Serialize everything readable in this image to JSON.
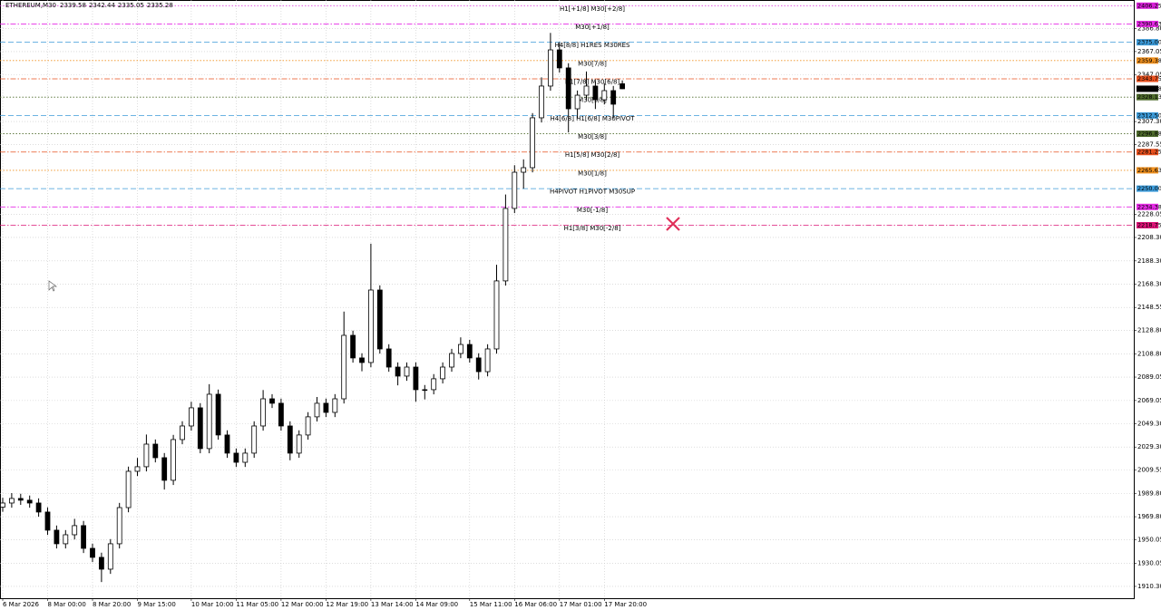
{
  "chart_data": {
    "type": "candlestick",
    "symbol": "ETHEREUM,M30",
    "categories": [
      "6 Mar 2026",
      null,
      null,
      null,
      null,
      "8 Mar 00:00",
      null,
      null,
      null,
      null,
      "8 Mar 20:00",
      null,
      null,
      null,
      null,
      "9 Mar 15:00",
      null,
      null,
      null,
      null,
      null,
      "10 Mar 10:00",
      null,
      null,
      null,
      null,
      "11 Mar 05:00",
      null,
      null,
      null,
      null,
      "12 Mar 00:00",
      null,
      null,
      null,
      null,
      "12 Mar 19:00",
      null,
      null,
      null,
      null,
      "13 Mar 14:00",
      null,
      null,
      null,
      null,
      "14 Mar 09:00",
      null,
      null,
      null,
      null,
      null,
      "15 Mar 11:00",
      null,
      null,
      null,
      null,
      "16 Mar 06:00",
      null,
      null,
      null,
      null,
      "17 Mar 01:00",
      null,
      null,
      null,
      null,
      "17 Mar 20:00",
      null,
      null
    ],
    "open": [
      1978.0,
      1981.5,
      1985.4,
      1983.9,
      1981.5,
      1973.8,
      1958.3,
      1946.7,
      1954.4,
      1962.2,
      1942.8,
      1935.1,
      1925.0,
      1946.7,
      1977.6,
      2008.6,
      2012.5,
      2031.8,
      2020.2,
      2000.9,
      2035.7,
      2047.3,
      2062.8,
      2028.0,
      2074.4,
      2039.6,
      2024.1,
      2016.3,
      2024.1,
      2047.3,
      2070.5,
      2066.7,
      2047.3,
      2024.1,
      2039.6,
      2055.1,
      2066.7,
      2058.9,
      2070.5,
      2124.7,
      2105.4,
      2101.5,
      2163.4,
      2113.1,
      2097.6,
      2089.9,
      2097.6,
      2078.3,
      2078.3,
      2087.6,
      2097.6,
      2109.2,
      2116.9,
      2105.4,
      2093.7,
      2113.1,
      2171.2,
      2233.1,
      2264.0,
      2267.9,
      2310.5,
      2337.6,
      2368.5,
      2353.1,
      2318.2,
      2329.8,
      2337.6,
      2325.9,
      2333.7,
      2339.58
    ],
    "high": [
      1986.0,
      1990.0,
      1989.4,
      1987.9,
      1985.5,
      1977.8,
      1962.3,
      1958.4,
      1968.0,
      1966.2,
      1946.8,
      1939.1,
      1950.7,
      1981.6,
      2012.6,
      2020.0,
      2040.0,
      2035.8,
      2024.2,
      2039.7,
      2051.3,
      2068.0,
      2066.8,
      2083.0,
      2078.4,
      2043.6,
      2028.1,
      2028.1,
      2051.3,
      2078.0,
      2074.5,
      2070.7,
      2051.3,
      2043.6,
      2059.1,
      2072.0,
      2070.7,
      2074.5,
      2145.0,
      2128.7,
      2109.4,
      2203.0,
      2167.4,
      2117.1,
      2101.6,
      2101.6,
      2101.6,
      2082.3,
      2091.6,
      2101.6,
      2113.2,
      2123.0,
      2120.9,
      2109.4,
      2117.1,
      2185.0,
      2245.0,
      2270.0,
      2275.0,
      2314.5,
      2345.0,
      2383.0,
      2375.0,
      2357.1,
      2333.8,
      2350.0,
      2341.6,
      2340.0,
      2337.7,
      2342.44
    ],
    "low": [
      1974.0,
      1977.5,
      1979.9,
      1977.5,
      1969.8,
      1954.3,
      1942.7,
      1942.7,
      1950.4,
      1938.8,
      1931.1,
      1914.0,
      1921.0,
      1942.7,
      1973.6,
      2004.6,
      2008.5,
      2016.2,
      1993.0,
      1996.9,
      2031.7,
      2043.3,
      2024.0,
      2024.0,
      2035.6,
      2020.1,
      2012.3,
      2012.3,
      2020.1,
      2043.3,
      2062.7,
      2043.3,
      2018.0,
      2020.1,
      2035.6,
      2051.1,
      2054.9,
      2054.9,
      2066.5,
      2101.4,
      2094.0,
      2097.5,
      2109.1,
      2093.6,
      2082.0,
      2085.9,
      2068.0,
      2070.0,
      2074.3,
      2083.6,
      2093.6,
      2105.2,
      2101.4,
      2087.0,
      2089.7,
      2109.1,
      2167.2,
      2229.1,
      2250.0,
      2263.9,
      2306.5,
      2333.6,
      2349.1,
      2298.0,
      2310.0,
      2325.8,
      2318.0,
      2321.9,
      2310.0,
      2335.05
    ],
    "close": [
      1981.5,
      1985.4,
      1983.9,
      1981.5,
      1973.8,
      1958.3,
      1946.7,
      1954.4,
      1962.2,
      1942.8,
      1935.1,
      1925.0,
      1946.7,
      1977.6,
      2008.6,
      2012.5,
      2031.8,
      2020.2,
      2000.9,
      2035.7,
      2047.3,
      2062.8,
      2028.0,
      2074.4,
      2039.6,
      2024.1,
      2016.3,
      2024.1,
      2047.3,
      2070.5,
      2066.7,
      2047.3,
      2024.1,
      2039.6,
      2055.1,
      2066.7,
      2058.9,
      2070.5,
      2124.7,
      2105.4,
      2101.5,
      2163.4,
      2113.1,
      2097.6,
      2089.9,
      2097.6,
      2078.3,
      2078.3,
      2087.6,
      2097.6,
      2109.2,
      2116.9,
      2105.4,
      2093.7,
      2113.1,
      2171.2,
      2233.1,
      2264.0,
      2267.9,
      2310.5,
      2337.6,
      2368.5,
      2353.1,
      2318.2,
      2329.8,
      2337.6,
      2325.9,
      2333.7,
      2322.1,
      2335.28
    ],
    "color": "#000000",
    "ylim": [
      1900.2,
      2411.1
    ],
    "yticks": [
      {
        "value": 1910.3,
        "label": "1910.30"
      },
      {
        "value": 1930.05,
        "label": "1930.05"
      },
      {
        "value": 1950.05,
        "label": "1950.05"
      },
      {
        "value": 1969.8,
        "label": "1969.80"
      },
      {
        "value": 1989.8,
        "label": "1989.80"
      },
      {
        "value": 2009.55,
        "label": "2009.55"
      },
      {
        "value": 2029.3,
        "label": "2029.30"
      },
      {
        "value": 2049.3,
        "label": "2049.30"
      },
      {
        "value": 2069.05,
        "label": "2069.05"
      },
      {
        "value": 2089.05,
        "label": "2089.05"
      },
      {
        "value": 2108.8,
        "label": "2108.80"
      },
      {
        "value": 2128.8,
        "label": "2128.80"
      },
      {
        "value": 2148.55,
        "label": "2148.55"
      },
      {
        "value": 2168.3,
        "label": "2168.30"
      },
      {
        "value": 2188.3,
        "label": "2188.30"
      },
      {
        "value": 2208.3,
        "label": "2208.30"
      },
      {
        "value": 2228.05,
        "label": "2228.05"
      },
      {
        "value": 2287.55,
        "label": "2287.55"
      },
      {
        "value": 2307.3,
        "label": "2307.30"
      },
      {
        "value": 2347.05,
        "label": "2347.05"
      },
      {
        "value": 2367.05,
        "label": "2367.05"
      },
      {
        "value": 2386.8,
        "label": "2386.80"
      }
    ],
    "grid": true,
    "levels": [
      {
        "value": 2406.25,
        "price_label": "2406.25",
        "label": "H1[+1/8] M30[+2/8]",
        "color": "#d81ed8",
        "style": "dotted"
      },
      {
        "value": 2390.63,
        "price_label": "2390.63",
        "label": "M30[+1/8]",
        "color": "#e629e6",
        "style": "dashdot"
      },
      {
        "value": 2375.0,
        "price_label": "2375.00",
        "label": "H4[8/8] H1RES M30RES",
        "color": "#3c9ad8",
        "style": "dashed"
      },
      {
        "value": 2359.38,
        "price_label": "2359.38",
        "label": "M30[7/8]",
        "color": "#f0901e",
        "style": "dotted"
      },
      {
        "value": 2343.75,
        "price_label": "2343.75",
        "label": "H1[7/8] M30[6/8]",
        "color": "#e8501e",
        "style": "dashdot"
      },
      {
        "value": 2328.13,
        "price_label": "2328.13",
        "label": "M30[5/8]",
        "color": "#4e6b2c",
        "style": "dotted"
      },
      {
        "value": 2312.5,
        "price_label": "2312.50",
        "label": "H4[6/8] H1[6/8] M30PIVOT",
        "color": "#3c9ad8",
        "style": "dashed"
      },
      {
        "value": 2296.88,
        "price_label": "2296.88",
        "label": "M30[3/8]",
        "color": "#4e6b2c",
        "style": "dotted"
      },
      {
        "value": 2281.25,
        "price_label": "2281.25",
        "label": "H1[5/8] M30[2/8]",
        "color": "#e8501e",
        "style": "dashdot"
      },
      {
        "value": 2265.63,
        "price_label": "2265.63",
        "label": "M30[1/8]",
        "color": "#f0901e",
        "style": "dotted"
      },
      {
        "value": 2250.0,
        "price_label": "2250.00",
        "label": "H4PIVOT H1PIVOT M30SUP",
        "color": "#3c9ad8",
        "style": "dashed"
      },
      {
        "value": 2234.38,
        "price_label": "2234.38",
        "label": "M30[-1/8]",
        "color": "#e629e6",
        "style": "dashdot"
      },
      {
        "value": 2218.75,
        "price_label": "2218.75",
        "label": "H1[3/8] M30[-2/8]",
        "color": "#dc1477",
        "style": "dashdot"
      }
    ]
  }
}
